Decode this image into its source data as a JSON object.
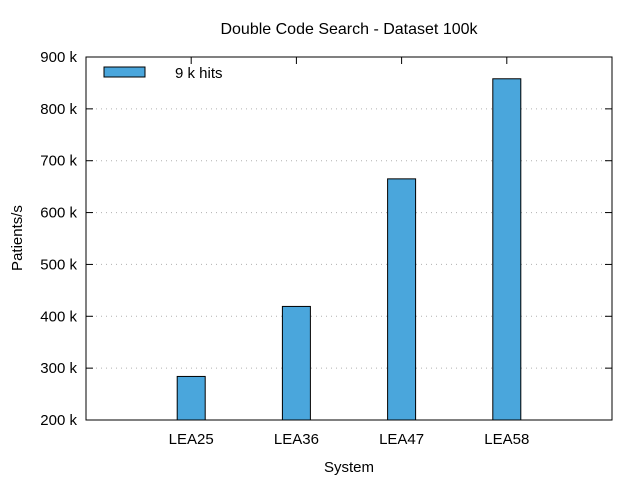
{
  "chart_data": {
    "type": "bar",
    "title": "Double Code Search - Dataset 100k",
    "xlabel": "System",
    "ylabel": "Patients/s",
    "categories": [
      "LEA25",
      "LEA36",
      "LEA47",
      "LEA58"
    ],
    "series": [
      {
        "name": "9 k hits",
        "values": [
          284000,
          419000,
          665000,
          858000
        ],
        "color": "#4aa6dc"
      }
    ],
    "ylim": [
      200000,
      900000
    ],
    "yticks": [
      200000,
      300000,
      400000,
      500000,
      600000,
      700000,
      800000,
      900000
    ],
    "ytick_labels": [
      "200 k",
      "300 k",
      "400 k",
      "500 k",
      "600 k",
      "700 k",
      "800 k",
      "900 k"
    ],
    "grid": "horizontal-dotted",
    "legend_position": "top-left"
  }
}
